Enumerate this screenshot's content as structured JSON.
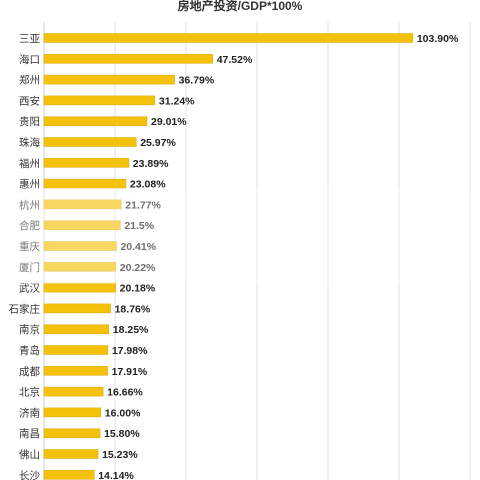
{
  "chart_data": {
    "type": "bar",
    "orientation": "horizontal",
    "title": "房地产投资/GDP*100%",
    "categories": [
      "三亚",
      "海口",
      "郑州",
      "西安",
      "贵阳",
      "珠海",
      "福州",
      "惠州",
      "杭州",
      "合肥",
      "重庆",
      "厦门",
      "武汉",
      "石家庄",
      "南京",
      "青岛",
      "成都",
      "北京",
      "济南",
      "南昌",
      "佛山",
      "长沙"
    ],
    "values": [
      103.9,
      47.52,
      36.79,
      31.24,
      29.01,
      25.97,
      23.89,
      23.08,
      21.77,
      21.5,
      20.41,
      20.22,
      20.18,
      18.76,
      18.25,
      17.98,
      17.91,
      16.66,
      16.0,
      15.8,
      15.23,
      14.14
    ],
    "value_labels": [
      "103.90%",
      "47.52%",
      "36.79%",
      "31.24%",
      "29.01%",
      "25.97%",
      "23.89%",
      "23.08%",
      "21.77%",
      "21.5%",
      "20.41%",
      "20.22%",
      "20.18%",
      "18.76%",
      "18.25%",
      "17.98%",
      "17.91%",
      "16.66%",
      "16.00%",
      "15.80%",
      "15.23%",
      "14.14%"
    ],
    "xlim": [
      0,
      120
    ],
    "grid": true,
    "bar_color": "#f4c20d",
    "bar_edge_color": "#d9a800",
    "gridline_color": "#d9d9d9"
  }
}
